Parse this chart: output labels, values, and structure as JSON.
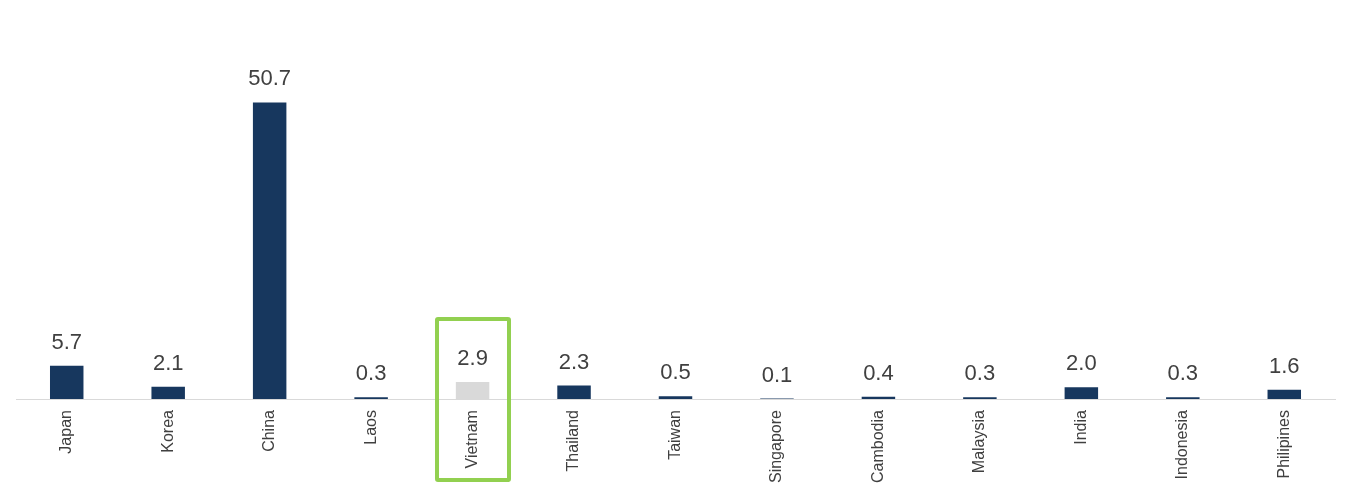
{
  "chart_data": {
    "type": "bar",
    "categories": [
      "Japan",
      "Korea",
      "China",
      "Laos",
      "Vietnam",
      "Thailand",
      "Taiwan",
      "Singapore",
      "Cambodia",
      "Malaysia",
      "India",
      "Indonesia",
      "Philipines"
    ],
    "values": [
      5.7,
      2.1,
      50.7,
      0.3,
      2.9,
      2.3,
      0.5,
      0.1,
      0.4,
      0.3,
      2.0,
      0.3,
      1.6
    ],
    "value_labels": [
      "5.7",
      "2.1",
      "50.7",
      "0.3",
      "2.9",
      "2.3",
      "0.5",
      "0.1",
      "0.4",
      "0.3",
      "2.0",
      "0.3",
      "1.6"
    ],
    "colors": [
      "#17375e",
      "#17375e",
      "#17375e",
      "#17375e",
      "#d9d9d9",
      "#17375e",
      "#17375e",
      "#17375e",
      "#17375e",
      "#17375e",
      "#17375e",
      "#17375e",
      "#17375e"
    ],
    "grid": false,
    "legend": false
  }
}
